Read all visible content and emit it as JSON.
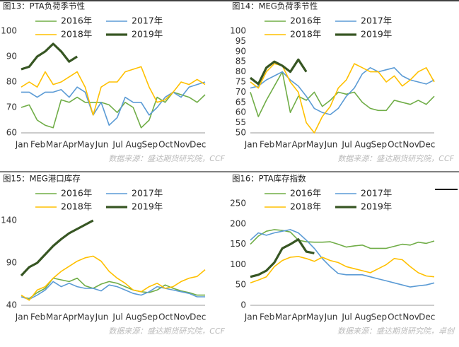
{
  "chart_data": [
    {
      "type": "line",
      "title": "图13：PTA负荷季节性",
      "source": "数据来源：盛达期货研究院，CCF",
      "categories": [
        "Jan",
        null,
        "Feb",
        null,
        "Mar",
        null,
        "Apr",
        null,
        "May",
        null,
        "Jun",
        null,
        "Jul",
        null,
        "Aug",
        null,
        "Sep",
        null,
        "Oct",
        null,
        "Nov",
        null,
        "Dec",
        null
      ],
      "ylim": [
        60,
        100
      ],
      "yticks": [
        60,
        70,
        80,
        90,
        100
      ],
      "legend": "top",
      "series": [
        {
          "name": "2016年",
          "color": "#70ad47",
          "values": [
            70,
            71,
            65,
            63,
            62,
            73,
            72,
            74,
            72,
            72,
            72,
            71,
            68,
            72,
            70,
            62,
            65,
            74,
            72,
            76,
            75,
            74,
            72,
            75
          ]
        },
        {
          "name": "2017年",
          "color": "#5b9bd5",
          "values": [
            76,
            76,
            74,
            76,
            76,
            77,
            74,
            78,
            76,
            67,
            72,
            63,
            66,
            74,
            72,
            72,
            67,
            70,
            74,
            76,
            74,
            78,
            79,
            80
          ]
        },
        {
          "name": "2018年",
          "color": "#ffc000",
          "values": [
            78,
            80,
            78,
            84,
            79,
            80,
            82,
            84,
            78,
            67,
            78,
            80,
            80,
            84,
            85,
            86,
            78,
            72,
            73,
            76,
            80,
            79,
            81,
            79
          ]
        },
        {
          "name": "2019年",
          "color": "#375623",
          "values": [
            85,
            86,
            90,
            92,
            95,
            92,
            88,
            90,
            null,
            null,
            null,
            null,
            null,
            null,
            null,
            null,
            null,
            null,
            null,
            null,
            null,
            null,
            null,
            null
          ]
        }
      ]
    },
    {
      "type": "line",
      "title": "图14：MEG负荷季节性",
      "source": "数据来源：盛达期货研究院，CCF",
      "categories": [
        "Jan",
        null,
        "Feb",
        null,
        "Mar",
        null,
        "Apr",
        null,
        "May",
        null,
        "Jun",
        null,
        "Jul",
        null,
        "Aug",
        null,
        "Sep",
        null,
        "Oct",
        null,
        "Nov",
        null,
        "Dec",
        null
      ],
      "ylim": [
        50,
        100
      ],
      "yticks": [
        50,
        55,
        60,
        65,
        70,
        75,
        80,
        85,
        90,
        95,
        100
      ],
      "legend": "top",
      "series": [
        {
          "name": "2016年",
          "color": "#70ad47",
          "values": [
            70,
            58,
            66,
            73,
            80,
            60,
            68,
            66,
            70,
            63,
            66,
            70,
            69,
            70,
            65,
            62,
            61,
            61,
            66,
            65,
            64,
            66,
            64,
            68
          ]
        },
        {
          "name": "2017年",
          "color": "#5b9bd5",
          "values": [
            72,
            73,
            76,
            78,
            80,
            76,
            73,
            68,
            62,
            60,
            59,
            62,
            68,
            72,
            79,
            82,
            80,
            81,
            82,
            78,
            76,
            75,
            74,
            76
          ]
        },
        {
          "name": "2018年",
          "color": "#ffc000",
          "values": [
            75,
            72,
            80,
            84,
            83,
            75,
            70,
            55,
            50,
            58,
            63,
            72,
            76,
            84,
            82,
            80,
            80,
            75,
            78,
            73,
            76,
            80,
            82,
            75
          ]
        },
        {
          "name": "2019年",
          "color": "#375623",
          "values": [
            77,
            74,
            82,
            85,
            83,
            80,
            86,
            80,
            null,
            null,
            null,
            null,
            null,
            null,
            null,
            null,
            null,
            null,
            null,
            null,
            null,
            null,
            null,
            null
          ]
        }
      ]
    },
    {
      "type": "line",
      "title": "图15：MEG港口库存",
      "source": "数据来源：盛达期货研究院，CCF",
      "categories": [
        "Jan",
        null,
        "Feb",
        null,
        "Mar",
        null,
        "Apr",
        null,
        "May",
        null,
        "Jun",
        null,
        "Jul",
        null,
        "Aug",
        null,
        "Sep",
        null,
        "Oct",
        null,
        "Nov",
        null,
        "Dec",
        null
      ],
      "ylim": [
        40,
        160
      ],
      "yticks": [
        40,
        90,
        140
      ],
      "legend": "top",
      "series": [
        {
          "name": "2016年",
          "color": "#70ad47",
          "values": [
            50,
            48,
            55,
            60,
            72,
            70,
            68,
            72,
            63,
            60,
            65,
            68,
            66,
            62,
            58,
            56,
            55,
            58,
            64,
            60,
            57,
            55,
            52,
            52
          ]
        },
        {
          "name": "2017年",
          "color": "#5b9bd5",
          "values": [
            50,
            47,
            52,
            58,
            68,
            62,
            66,
            62,
            60,
            60,
            57,
            64,
            62,
            58,
            54,
            52,
            56,
            62,
            60,
            58,
            56,
            54,
            50,
            50
          ]
        },
        {
          "name": "2018年",
          "color": "#ffc000",
          "values": [
            52,
            46,
            58,
            62,
            72,
            80,
            86,
            92,
            96,
            98,
            92,
            80,
            72,
            66,
            58,
            56,
            62,
            66,
            60,
            62,
            68,
            72,
            74,
            82
          ]
        },
        {
          "name": "2019年",
          "color": "#375623",
          "values": [
            75,
            85,
            90,
            100,
            110,
            118,
            125,
            130,
            135,
            140,
            null,
            null,
            null,
            null,
            null,
            null,
            null,
            null,
            null,
            null,
            null,
            null,
            null,
            null
          ]
        }
      ]
    },
    {
      "type": "line",
      "title": "图16：PTA库存指数",
      "source": "数据来源：盛达期货研究院，卓创",
      "categories": [
        "Jan",
        null,
        "Feb",
        null,
        "Mar",
        null,
        "Apr",
        null,
        "May",
        null,
        "Jun",
        null,
        "Jul",
        null,
        "Aug",
        null,
        "Sep",
        null,
        "Oct",
        null,
        "Nov",
        null,
        "Dec",
        null
      ],
      "ylim": [
        0,
        250
      ],
      "yticks": [
        0,
        50,
        100,
        150,
        200,
        250
      ],
      "legend": "top",
      "series": [
        {
          "name": "2016年",
          "color": "#70ad47",
          "values": [
            150,
            170,
            182,
            186,
            184,
            180,
            160,
            156,
            155,
            155,
            156,
            150,
            143,
            146,
            148,
            140,
            140,
            140,
            145,
            150,
            148,
            155,
            152,
            158
          ]
        },
        {
          "name": "2017年",
          "color": "#5b9bd5",
          "values": [
            160,
            178,
            172,
            178,
            182,
            186,
            178,
            160,
            140,
            115,
            95,
            78,
            75,
            75,
            75,
            70,
            65,
            60,
            55,
            50,
            45,
            48,
            50,
            55
          ]
        },
        {
          "name": "2018年",
          "color": "#ffc000",
          "values": [
            55,
            62,
            70,
            95,
            110,
            118,
            120,
            115,
            108,
            118,
            110,
            105,
            95,
            90,
            85,
            80,
            90,
            100,
            115,
            112,
            95,
            80,
            72,
            70
          ]
        },
        {
          "name": "2019年",
          "color": "#375623",
          "values": [
            70,
            75,
            85,
            105,
            140,
            150,
            162,
            132,
            128,
            null,
            null,
            null,
            null,
            null,
            null,
            null,
            null,
            null,
            null,
            null,
            null,
            null,
            null,
            null
          ]
        }
      ]
    }
  ]
}
